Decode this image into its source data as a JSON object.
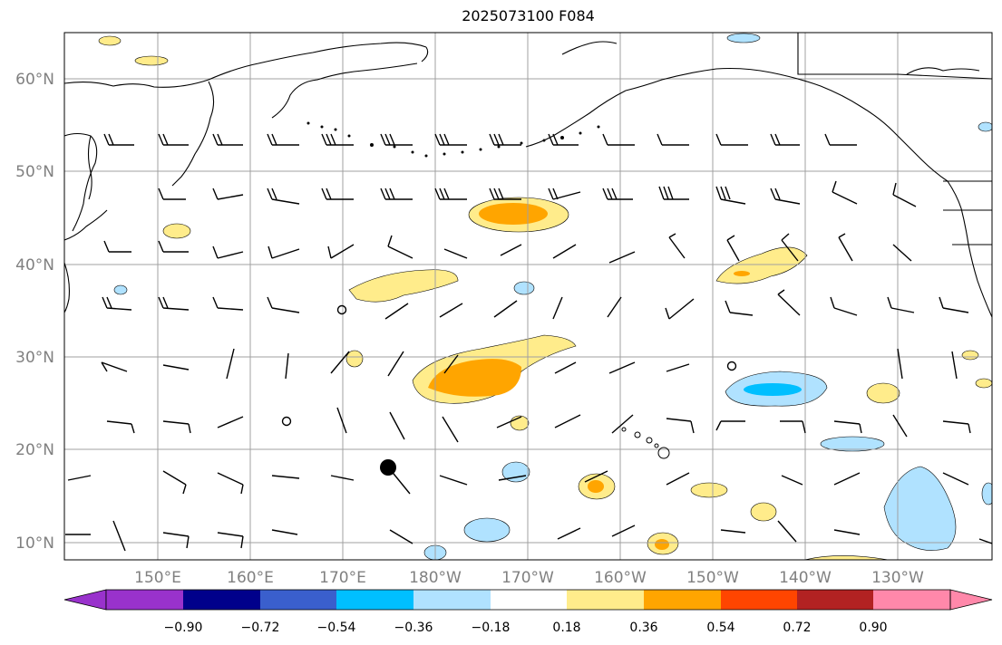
{
  "title": "2025073100 F084",
  "lat_labels": [
    "60°N",
    "50°N",
    "40°N",
    "30°N",
    "20°N",
    "10°N"
  ],
  "lon_labels": [
    "150°E",
    "160°E",
    "170°E",
    "180°W",
    "170°W",
    "160°W",
    "150°W",
    "140°W",
    "130°W"
  ],
  "colorbar": {
    "tick_labels": [
      "−0.90",
      "−0.72",
      "−0.54",
      "−0.36",
      "−0.18",
      "0.18",
      "0.36",
      "0.54",
      "0.72",
      "0.90"
    ],
    "colors": [
      "#9932cc",
      "#00008b",
      "#3a5fcd",
      "#00bfff",
      "#b0e2ff",
      "#ffffff",
      "#ffec8b",
      "#ffa500",
      "#ff4500",
      "#b22222",
      "#ff88aa"
    ]
  },
  "colors": {
    "axis_label": "#808080",
    "grid": "#a0a0a0",
    "coast": "#000000"
  }
}
